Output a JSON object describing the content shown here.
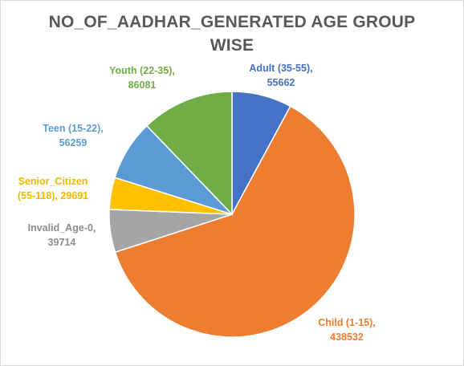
{
  "chart_data": {
    "type": "pie",
    "title_lines": [
      "NO_OF_AADHAR_GENERATED AGE GROUP",
      "WISE"
    ],
    "slices": [
      {
        "label": "Adult (35-55)",
        "value": 55662,
        "color": "#4472C4",
        "label_lines": [
          "Adult (35-55),",
          "55662"
        ]
      },
      {
        "label": "Child (1-15)",
        "value": 438532,
        "color": "#ED7D31",
        "label_lines": [
          "Child (1-15),",
          "438532"
        ]
      },
      {
        "label": "Invalid_Age-0",
        "value": 39714,
        "color": "#A5A5A5",
        "label_lines": [
          "Invalid_Age-0,",
          "39714"
        ]
      },
      {
        "label": "Senior_Citizen (55-118)",
        "value": 29691,
        "color": "#FFC000",
        "label_lines": [
          "Senior_Citizen",
          "(55-118), 29691"
        ]
      },
      {
        "label": "Teen (15-22)",
        "value": 56259,
        "color": "#5B9BD5",
        "label_lines": [
          "Teen (15-22),",
          "56259"
        ]
      },
      {
        "label": "Youth (22-35)",
        "value": 86081,
        "color": "#70AD47",
        "label_lines": [
          "Youth (22-35),",
          "86081"
        ]
      }
    ],
    "start_angle_deg": 0,
    "direction": "clockwise",
    "legend": "none",
    "data_labels": "outside"
  }
}
